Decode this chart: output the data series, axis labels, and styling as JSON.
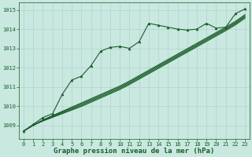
{
  "bg_color": "#c8e8e0",
  "grid_color": "#b0d4cc",
  "line_color": "#1a5c28",
  "xlabel": "Graphe pression niveau de la mer (hPa)",
  "xlabel_fontsize": 6.5,
  "tick_fontsize": 5,
  "ylim": [
    1008.3,
    1015.4
  ],
  "xlim": [
    -0.5,
    23.5
  ],
  "yticks": [
    1009,
    1010,
    1011,
    1012,
    1013,
    1014,
    1015
  ],
  "xticks": [
    0,
    1,
    2,
    3,
    4,
    5,
    6,
    7,
    8,
    9,
    10,
    11,
    12,
    13,
    14,
    15,
    16,
    17,
    18,
    19,
    20,
    21,
    22,
    23
  ],
  "series": [
    {
      "x": [
        0,
        1,
        2,
        3,
        4,
        5,
        6,
        7,
        8,
        9,
        10,
        11,
        12,
        13,
        14,
        15,
        16,
        17,
        18,
        19,
        20,
        21,
        22,
        23
      ],
      "y": [
        1008.7,
        1009.05,
        1009.4,
        1009.6,
        1010.6,
        1011.35,
        1011.55,
        1012.1,
        1012.85,
        1013.05,
        1013.1,
        1013.0,
        1013.35,
        1014.3,
        1014.2,
        1014.1,
        1014.0,
        1013.95,
        1014.0,
        1014.3,
        1014.05,
        1014.1,
        1014.8,
        1015.05
      ],
      "marker": "^",
      "markersize": 2.0,
      "linewidth": 0.8,
      "has_marker": true
    },
    {
      "x": [
        0,
        1,
        2,
        3,
        4,
        5,
        6,
        7,
        8,
        9,
        10,
        11,
        12,
        13,
        14,
        15,
        16,
        17,
        18,
        19,
        20,
        21,
        22,
        23
      ],
      "y": [
        1008.7,
        1009.0,
        1009.28,
        1009.5,
        1009.72,
        1009.94,
        1010.16,
        1010.38,
        1010.6,
        1010.82,
        1011.04,
        1011.3,
        1011.58,
        1011.86,
        1012.14,
        1012.42,
        1012.7,
        1012.98,
        1013.26,
        1013.54,
        1013.82,
        1014.1,
        1014.4,
        1014.75
      ],
      "marker": null,
      "markersize": 0,
      "linewidth": 0.8,
      "has_marker": false
    },
    {
      "x": [
        0,
        1,
        2,
        3,
        4,
        5,
        6,
        7,
        8,
        9,
        10,
        11,
        12,
        13,
        14,
        15,
        16,
        17,
        18,
        19,
        20,
        21,
        22,
        23
      ],
      "y": [
        1008.7,
        1009.0,
        1009.24,
        1009.44,
        1009.64,
        1009.84,
        1010.04,
        1010.26,
        1010.48,
        1010.7,
        1010.92,
        1011.18,
        1011.46,
        1011.74,
        1012.02,
        1012.3,
        1012.58,
        1012.86,
        1013.14,
        1013.42,
        1013.7,
        1013.98,
        1014.28,
        1014.63
      ],
      "marker": null,
      "markersize": 0,
      "linewidth": 0.8,
      "has_marker": false
    },
    {
      "x": [
        0,
        1,
        2,
        3,
        4,
        5,
        6,
        7,
        8,
        9,
        10,
        11,
        12,
        13,
        14,
        15,
        16,
        17,
        18,
        19,
        20,
        21,
        22,
        23
      ],
      "y": [
        1008.7,
        1009.0,
        1009.22,
        1009.41,
        1009.6,
        1009.79,
        1009.98,
        1010.2,
        1010.42,
        1010.64,
        1010.86,
        1011.12,
        1011.4,
        1011.68,
        1011.96,
        1012.24,
        1012.52,
        1012.8,
        1013.08,
        1013.36,
        1013.64,
        1013.92,
        1014.22,
        1014.57
      ],
      "marker": null,
      "markersize": 0,
      "linewidth": 0.8,
      "has_marker": false
    },
    {
      "x": [
        0,
        1,
        2,
        3,
        4,
        5,
        6,
        7,
        8,
        9,
        10,
        11,
        12,
        13,
        14,
        15,
        16,
        17,
        18,
        19,
        20,
        21,
        22,
        23
      ],
      "y": [
        1008.7,
        1009.0,
        1009.26,
        1009.47,
        1009.68,
        1009.89,
        1010.1,
        1010.32,
        1010.54,
        1010.76,
        1010.98,
        1011.24,
        1011.52,
        1011.8,
        1012.08,
        1012.36,
        1012.64,
        1012.92,
        1013.2,
        1013.48,
        1013.76,
        1014.04,
        1014.34,
        1014.69
      ],
      "marker": null,
      "markersize": 0,
      "linewidth": 0.8,
      "has_marker": false
    }
  ]
}
